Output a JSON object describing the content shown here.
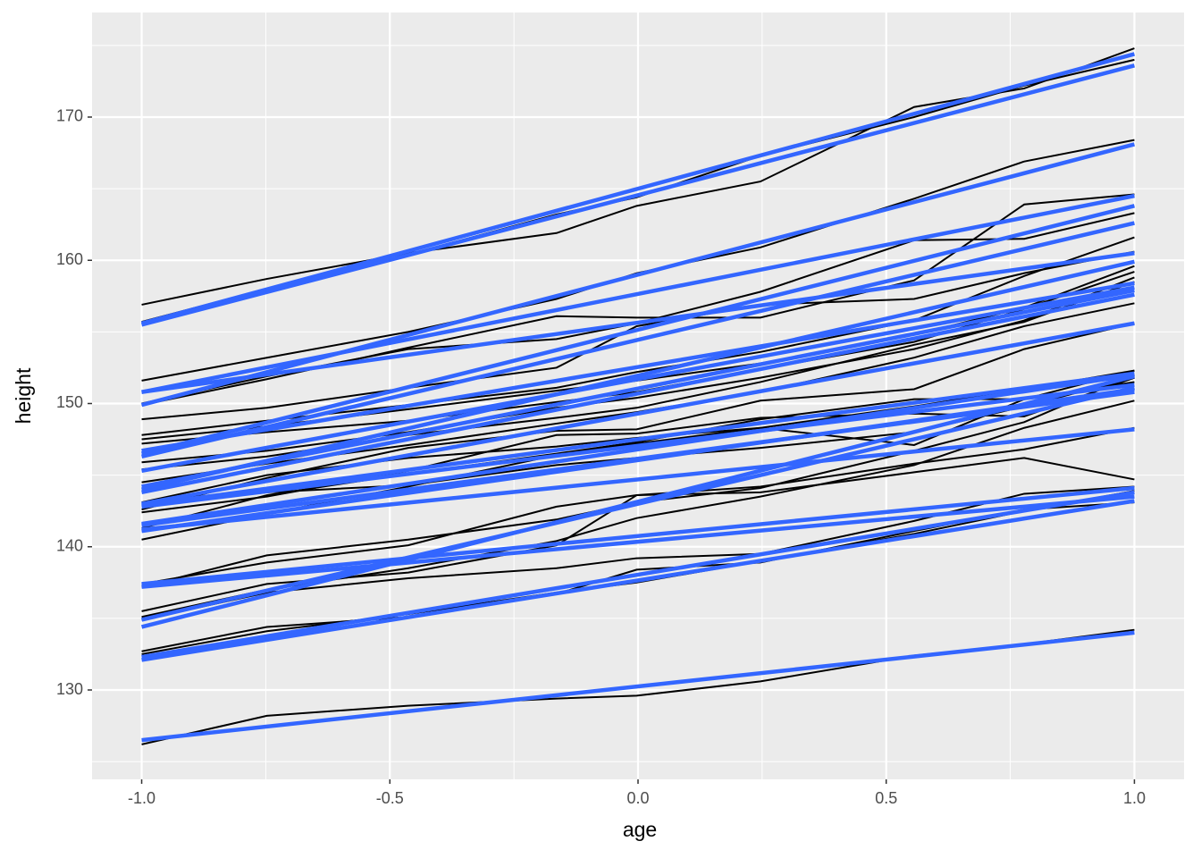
{
  "chart_data": {
    "type": "line",
    "x_label": "age",
    "y_label": "height",
    "x": [
      -1,
      -0.7479,
      -0.463,
      -0.1643,
      -0.0027,
      0.2466,
      0.5562,
      0.778,
      1
    ],
    "line_color": "#000000",
    "fit_color": "#3366FF",
    "grid": true,
    "xlim": [
      -1.1,
      1.1
    ],
    "ylim": [
      123.76,
      177.3
    ],
    "xticks": [
      {
        "value": -1,
        "label": "-1.0"
      },
      {
        "value": -0.5,
        "label": "-0.5"
      },
      {
        "value": 0,
        "label": "0.0"
      },
      {
        "value": 0.5,
        "label": "0.5"
      },
      {
        "value": 1,
        "label": "1.0"
      }
    ],
    "yticks": [
      130,
      140,
      150,
      160,
      170
    ],
    "series": [
      {
        "values": [
          156.9,
          158.7,
          160.5,
          161.9,
          163.8,
          165.5,
          170.7,
          172.0,
          174.8
        ],
        "fit": [
          155.6,
          174.4
        ]
      },
      {
        "values": [
          155.7,
          158.0,
          160.4,
          163.2,
          164.4,
          167.3,
          170.0,
          172.2,
          174.0
        ],
        "fit": [
          155.5,
          173.6
        ]
      },
      {
        "values": [
          151.6,
          153.2,
          155.0,
          157.3,
          159.1,
          160.9,
          164.3,
          166.9,
          168.4
        ],
        "fit": [
          149.9,
          168.1
        ]
      },
      {
        "values": [
          149.9,
          151.7,
          153.9,
          156.1,
          156.0,
          156.0,
          158.6,
          163.9,
          164.6
        ],
        "fit": [
          150.8,
          164.5
        ]
      },
      {
        "values": [
          150.0,
          151.9,
          153.8,
          154.5,
          155.6,
          157.8,
          161.4,
          161.5,
          163.3
        ],
        "fit": [
          146.5,
          163.8
        ]
      },
      {
        "values": [
          148.9,
          149.7,
          151.1,
          152.5,
          155.4,
          156.9,
          157.3,
          159.1,
          160.6
        ],
        "fit": [
          150.8,
          160.5
        ]
      },
      {
        "values": [
          147.8,
          148.8,
          149.9,
          151.1,
          152.2,
          153.6,
          155.8,
          158.9,
          161.6
        ],
        "fit": [
          146.3,
          162.6
        ]
      },
      {
        "values": [
          147.5,
          148.4,
          149.6,
          150.9,
          151.6,
          152.8,
          154.8,
          156.7,
          159.6
        ],
        "fit": [
          144.0,
          159.9
        ]
      },
      {
        "values": [
          147.2,
          148.0,
          148.8,
          150.1,
          150.8,
          152.4,
          154.3,
          156.6,
          159.2
        ],
        "fit": [
          146.7,
          158.4
        ]
      },
      {
        "values": [
          145.9,
          146.7,
          148.0,
          149.7,
          150.4,
          151.8,
          153.8,
          155.8,
          158.8
        ],
        "fit": [
          145.3,
          158.1
        ]
      },
      {
        "values": [
          145.4,
          146.3,
          147.8,
          149.0,
          149.7,
          151.5,
          154.1,
          155.7,
          158.5
        ],
        "fit": [
          144.2,
          157.9
        ]
      },
      {
        "values": [
          144.5,
          145.8,
          147.1,
          148.6,
          149.4,
          150.8,
          153.2,
          155.4,
          157.0
        ],
        "fit": [
          143.8,
          157.6
        ]
      },
      {
        "values": [
          142.6,
          144.8,
          146.9,
          148.1,
          148.2,
          150.2,
          151.0,
          153.8,
          155.6
        ],
        "fit": [
          143.0,
          155.6
        ]
      },
      {
        "values": [
          142.4,
          143.5,
          145.3,
          147.8,
          147.9,
          149.0,
          149.3,
          149.1,
          151.8
        ],
        "fit": [
          142.8,
          151.3
        ]
      },
      {
        "values": [
          141.3,
          143.6,
          145.1,
          146.5,
          147.3,
          148.9,
          150.3,
          150.3,
          152.3
        ],
        "fit": [
          141.6,
          152.0
        ]
      },
      {
        "values": [
          140.5,
          142.3,
          144.2,
          146.4,
          147.2,
          148.3,
          147.1,
          150.3,
          151.5
        ],
        "fit": [
          141.1,
          151.0
        ]
      },
      {
        "values": [
          142.9,
          143.8,
          144.3,
          145.7,
          146.2,
          146.9,
          148.0,
          149.8,
          151.8
        ],
        "fit": [
          141.5,
          150.8
        ]
      },
      {
        "values": [
          137.4,
          138.9,
          140.1,
          142.8,
          143.6,
          144.2,
          145.8,
          146.8,
          148.3
        ],
        "fit": [
          141.2,
          148.2
        ]
      },
      {
        "values": [
          137.2,
          139.4,
          140.5,
          141.9,
          143.1,
          144.1,
          146.7,
          148.7,
          152.0
        ],
        "fit": [
          134.4,
          151.9
        ]
      },
      {
        "values": [
          135.5,
          137.4,
          138.2,
          140.1,
          143.6,
          143.8,
          145.2,
          146.2,
          144.7
        ],
        "fit": [
          137.4,
          144.1
        ]
      },
      {
        "values": [
          134.9,
          136.8,
          137.8,
          138.5,
          139.2,
          139.5,
          141.8,
          143.7,
          144.2
        ],
        "fit": [
          137.2,
          143.5
        ]
      },
      {
        "values": [
          132.7,
          134.4,
          135.1,
          136.7,
          138.4,
          138.9,
          141.1,
          142.6,
          143.1
        ],
        "fit": [
          132.3,
          143.8
        ]
      },
      {
        "values": [
          132.5,
          134.1,
          135.3,
          136.8,
          137.5,
          139.0,
          140.9,
          142.5,
          143.9
        ],
        "fit": [
          132.1,
          143.2
        ]
      },
      {
        "values": [
          126.2,
          128.2,
          128.9,
          129.4,
          129.6,
          130.6,
          132.4,
          133.2,
          134.2
        ],
        "fit": [
          126.5,
          134.0
        ]
      },
      {
        "values": [
          143.1,
          145.0,
          146.2,
          147.0,
          147.6,
          148.3,
          149.8,
          151.0,
          152.3
        ],
        "fit": [
          142.9,
          152.1
        ]
      },
      {
        "values": [
          135.1,
          137.0,
          138.5,
          140.4,
          142.0,
          143.5,
          145.7,
          148.3,
          150.2
        ],
        "fit": [
          134.9,
          151.1
        ]
      }
    ]
  }
}
